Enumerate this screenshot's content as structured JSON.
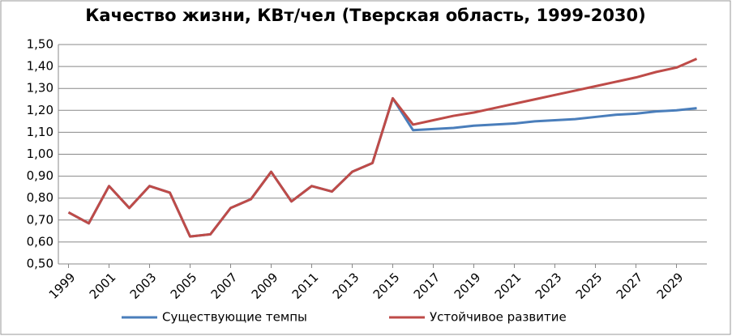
{
  "chart_data": {
    "type": "line",
    "title": "Качество жизни, КВт/чел (Тверская область, 1999-2030)",
    "x": [
      1999,
      2000,
      2001,
      2002,
      2003,
      2004,
      2005,
      2006,
      2007,
      2008,
      2009,
      2010,
      2011,
      2012,
      2013,
      2014,
      2015,
      2016,
      2017,
      2018,
      2019,
      2020,
      2021,
      2022,
      2023,
      2024,
      2025,
      2026,
      2027,
      2028,
      2029,
      2030
    ],
    "xlim": [
      1998.5,
      2030.5
    ],
    "xticks": [
      1999,
      2001,
      2003,
      2005,
      2007,
      2009,
      2011,
      2013,
      2015,
      2017,
      2019,
      2021,
      2023,
      2025,
      2027,
      2029
    ],
    "ylim": [
      0.5,
      1.5
    ],
    "yticks": [
      {
        "value": 0.5,
        "label": "0,50"
      },
      {
        "value": 0.6,
        "label": "0,60"
      },
      {
        "value": 0.7,
        "label": "0,70"
      },
      {
        "value": 0.8,
        "label": "0,80"
      },
      {
        "value": 0.9,
        "label": "0,90"
      },
      {
        "value": 1.0,
        "label": "1,00"
      },
      {
        "value": 1.1,
        "label": "1,10"
      },
      {
        "value": 1.2,
        "label": "1,20"
      },
      {
        "value": 1.3,
        "label": "1,30"
      },
      {
        "value": 1.4,
        "label": "1,40"
      },
      {
        "value": 1.5,
        "label": "1,50"
      }
    ],
    "grid": true,
    "legend": "bottom",
    "series": [
      {
        "name": "Существующие темпы",
        "color": "#4a7ebb",
        "values": [
          0.735,
          0.685,
          0.855,
          0.755,
          0.855,
          0.825,
          0.625,
          0.635,
          0.755,
          0.795,
          0.92,
          0.785,
          0.855,
          0.83,
          0.92,
          0.96,
          1.255,
          1.11,
          1.115,
          1.12,
          1.13,
          1.135,
          1.14,
          1.15,
          1.155,
          1.16,
          1.17,
          1.18,
          1.185,
          1.195,
          1.2,
          1.21
        ]
      },
      {
        "name": "Устойчивое развитие",
        "color": "#be4b48",
        "values": [
          0.735,
          0.685,
          0.855,
          0.755,
          0.855,
          0.825,
          0.625,
          0.635,
          0.755,
          0.795,
          0.92,
          0.785,
          0.855,
          0.83,
          0.92,
          0.96,
          1.255,
          1.135,
          1.155,
          1.175,
          1.19,
          1.21,
          1.23,
          1.25,
          1.27,
          1.29,
          1.31,
          1.33,
          1.35,
          1.375,
          1.395,
          1.435
        ]
      }
    ]
  }
}
